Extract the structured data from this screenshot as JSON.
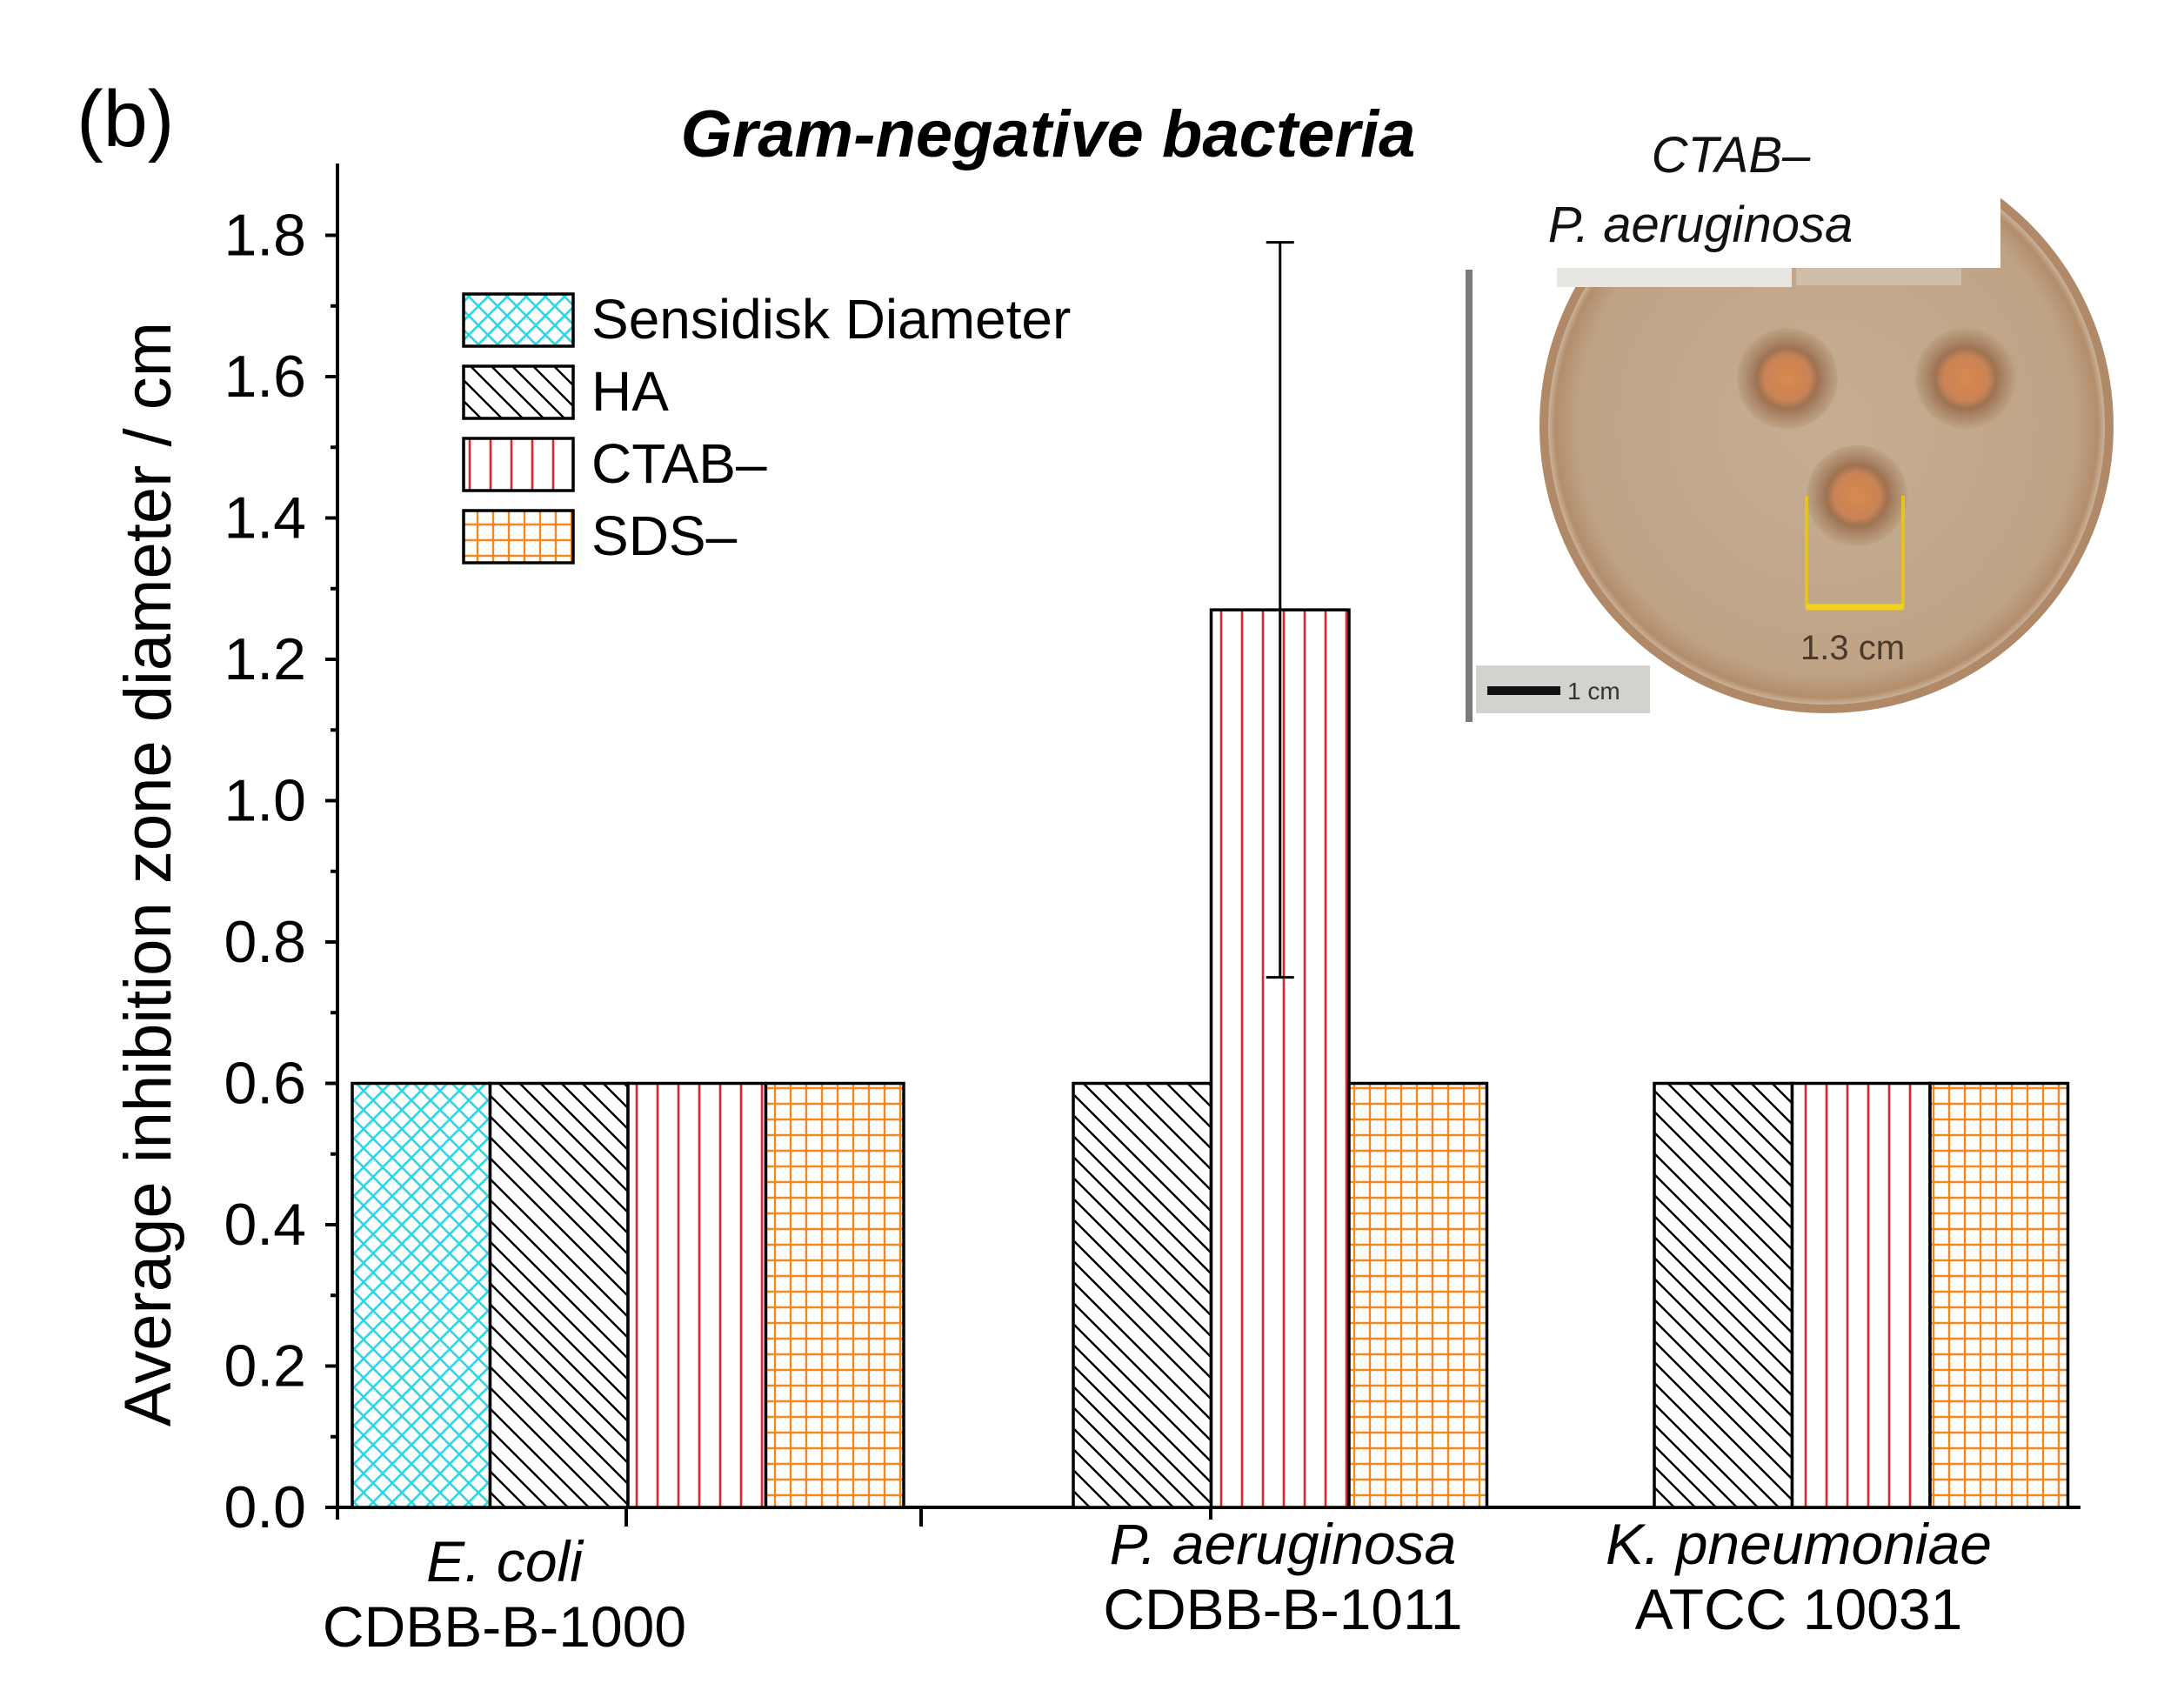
{
  "panel_label": "(b)",
  "chart_data": {
    "type": "bar",
    "title": "Gram-negative bacteria",
    "ylabel": "Average inhibition zone diameter / cm",
    "xlabel": "",
    "ylim": [
      0,
      1.9
    ],
    "y_ticks": [
      0.0,
      0.2,
      0.4,
      0.6,
      0.8,
      1.0,
      1.2,
      1.4,
      1.6,
      1.8
    ],
    "y_tick_labels": [
      "0.0",
      "0.2",
      "0.4",
      "0.6",
      "0.8",
      "1.0",
      "1.2",
      "1.4",
      "1.6",
      "1.8"
    ],
    "categories": [
      {
        "name": "E. coli",
        "strain": "CDBB-B-1000"
      },
      {
        "name": "P. aeruginosa",
        "strain": "CDBB-B-1011"
      },
      {
        "name": "K. pneumoniae",
        "strain": "ATCC 10031"
      }
    ],
    "series": [
      {
        "name": "Sensidisk Diameter",
        "pattern": "crosshatch",
        "color": "#2fd6e6",
        "values": [
          0.6,
          null,
          null
        ]
      },
      {
        "name": "HA",
        "pattern": "diagonal",
        "color": "#000000",
        "values": [
          0.6,
          0.6,
          0.6
        ]
      },
      {
        "name": "CTAB–",
        "pattern": "vertical",
        "color": "#e0262c",
        "values": [
          0.6,
          1.27,
          0.6
        ]
      },
      {
        "name": "SDS–",
        "pattern": "grid",
        "color": "#f08a1c",
        "values": [
          0.6,
          0.6,
          0.6
        ]
      }
    ],
    "error_bars": [
      {
        "series": "CTAB–",
        "category": "P. aeruginosa",
        "low": 0.75,
        "high": 1.79
      }
    ],
    "legend_position": "top-left"
  },
  "inset": {
    "title_line1": "CTAB–",
    "title_line2": "P. aeruginosa",
    "measure_label": "1.3 cm",
    "scale_label": "1 cm",
    "plate_color": "#c3a98c",
    "zone_color": "#a77a58",
    "rim_color": "#b08a68"
  }
}
